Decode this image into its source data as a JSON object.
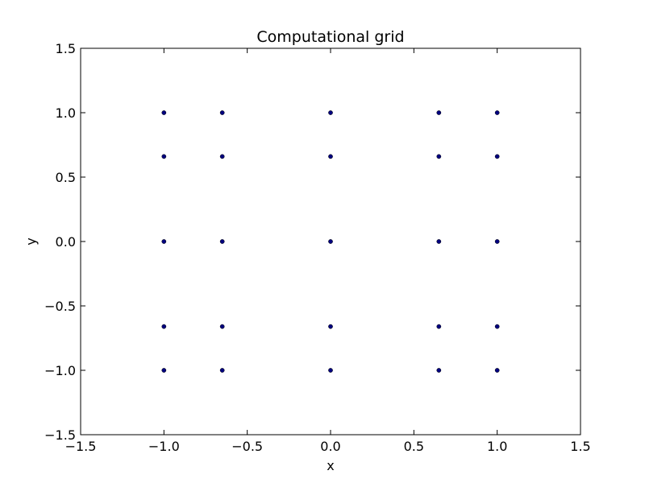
{
  "chart_data": {
    "type": "scatter",
    "title": "Computational grid",
    "xlabel": "x",
    "ylabel": "y",
    "xlim": [
      -1.5,
      1.5
    ],
    "ylim": [
      -1.5,
      1.5
    ],
    "xticks": [
      -1.5,
      -1.0,
      -0.5,
      0.0,
      0.5,
      1.0,
      1.5
    ],
    "yticks": [
      -1.5,
      -1.0,
      -0.5,
      0.0,
      0.5,
      1.0,
      1.5
    ],
    "xtick_labels": [
      "−1.5",
      "−1.0",
      "−0.5",
      "0.0",
      "0.5",
      "1.0",
      "1.5"
    ],
    "ytick_labels": [
      "−1.5",
      "−1.0",
      "−0.5",
      "0.0",
      "0.5",
      "1.0",
      "1.5"
    ],
    "grid": false,
    "marker_color": "#00007f",
    "x_coords": [
      -1.0,
      -0.65,
      0.0,
      0.65,
      1.0
    ],
    "y_coords": [
      -1.0,
      -0.66,
      0.0,
      0.66,
      1.0
    ]
  }
}
